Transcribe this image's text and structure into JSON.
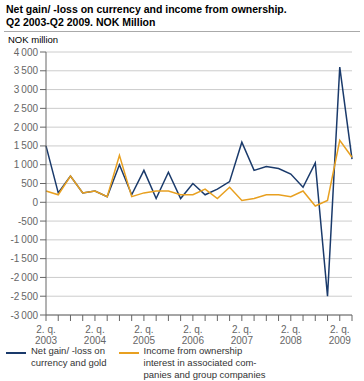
{
  "chart_data": {
    "type": "line",
    "title": "Net gain/ -loss on currency and income from ownership.",
    "subtitle": "Q2 2003-Q2 2009. NOK Million",
    "ylabel": "NOK million",
    "categories": [
      "2. q.\n2003",
      null,
      null,
      null,
      "2. q.\n2004",
      null,
      null,
      null,
      "2. q.\n2005",
      null,
      null,
      null,
      "2. q.\n2006",
      null,
      null,
      null,
      "2. q.\n2007",
      null,
      null,
      null,
      "2. q.\n2008",
      null,
      null,
      null,
      "2. q.\n2009",
      null
    ],
    "series": [
      {
        "name": "Net gain/ -loss on\ncurrency and gold",
        "color": "#1a3a6b",
        "values": [
          1500,
          250,
          700,
          250,
          300,
          150,
          1000,
          200,
          850,
          100,
          800,
          100,
          500,
          200,
          350,
          550,
          1600,
          850,
          950,
          900,
          750,
          400,
          1050,
          -2500,
          3600,
          1150
        ]
      },
      {
        "name": "Income from ownership\ninterest in associated com-\npanies and group companies",
        "color": "#e8a020",
        "values": [
          300,
          200,
          700,
          250,
          300,
          150,
          1250,
          150,
          250,
          300,
          300,
          200,
          200,
          350,
          100,
          400,
          50,
          100,
          200,
          200,
          150,
          300,
          -100,
          50,
          1650,
          1200
        ]
      }
    ],
    "ylim": [
      -3000,
      4000
    ],
    "yticks": [
      {
        "value": -3000,
        "label": "-3 000"
      },
      {
        "value": -2500,
        "label": "-2 500"
      },
      {
        "value": -2000,
        "label": "-2 000"
      },
      {
        "value": -1500,
        "label": "-1 500"
      },
      {
        "value": -1000,
        "label": "-1 000"
      },
      -500,
      0,
      500,
      {
        "value": 1000,
        "label": "1 000"
      },
      {
        "value": 1500,
        "label": "1 500"
      },
      {
        "value": 2000,
        "label": "2 000"
      },
      {
        "value": 2500,
        "label": "2 500"
      },
      {
        "value": 3000,
        "label": "3 000"
      },
      {
        "value": 3500,
        "label": "3 500"
      },
      {
        "value": 4000,
        "label": "4 000"
      }
    ],
    "grid": true,
    "legend": "bottom"
  }
}
